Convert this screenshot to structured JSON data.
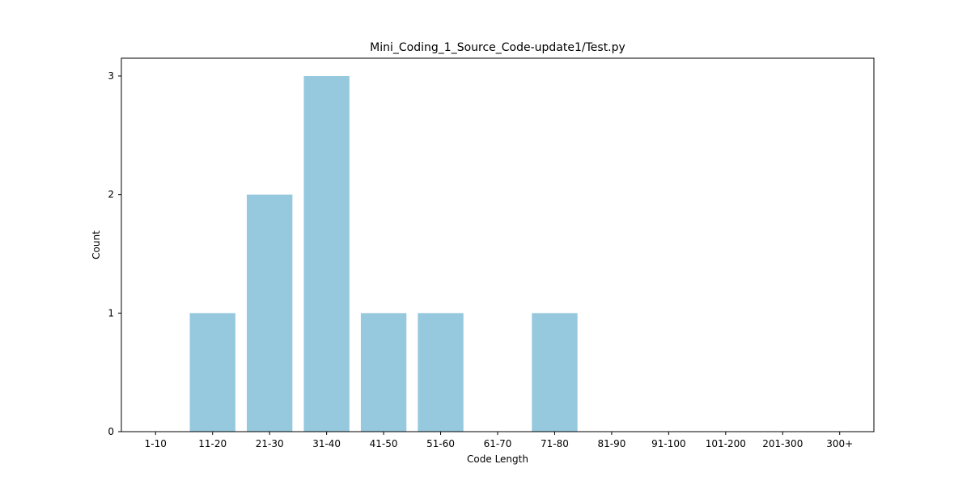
{
  "chart_data": {
    "type": "bar",
    "title": "Mini_Coding_1_Source_Code-update1/Test.py",
    "xlabel": "Code Length",
    "ylabel": "Count",
    "categories": [
      "1-10",
      "11-20",
      "21-30",
      "31-40",
      "41-50",
      "51-60",
      "61-70",
      "71-80",
      "81-90",
      "91-100",
      "101-200",
      "201-300",
      "300+"
    ],
    "values": [
      0,
      1,
      2,
      3,
      1,
      1,
      0,
      1,
      0,
      0,
      0,
      0,
      0
    ],
    "yticks": [
      0,
      1,
      2,
      3
    ],
    "ylim": [
      0,
      3.15
    ],
    "grid": false,
    "bar_color": "#96c9de"
  }
}
